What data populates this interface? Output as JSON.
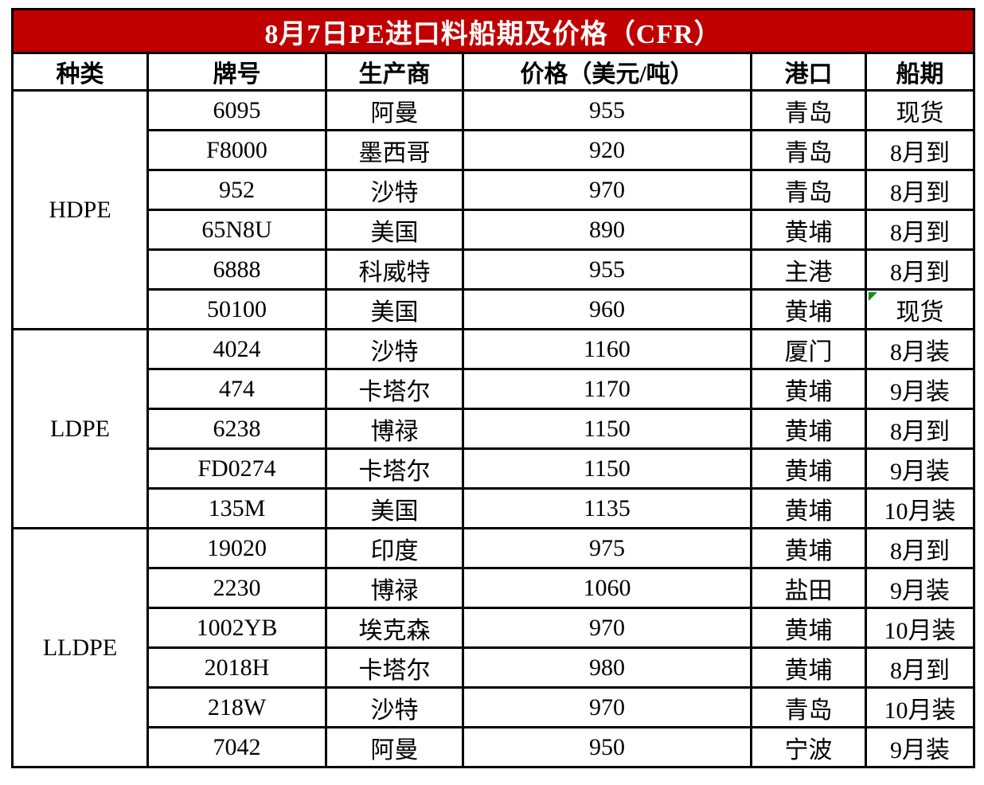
{
  "title": "8月7日PE进口料船期及价格（CFR）",
  "columns": {
    "category": "种类",
    "grade": "牌号",
    "producer": "生产商",
    "price": "价格（美元/吨）",
    "port": "港口",
    "shipment": "船期"
  },
  "groups": [
    {
      "category": "HDPE",
      "rows": [
        {
          "grade": "6095",
          "producer": "阿曼",
          "price": "955",
          "port": "青岛",
          "shipment": "现货"
        },
        {
          "grade": "F8000",
          "producer": "墨西哥",
          "price": "920",
          "port": "青岛",
          "shipment": "8月到"
        },
        {
          "grade": "952",
          "producer": "沙特",
          "price": "970",
          "port": "青岛",
          "shipment": "8月到"
        },
        {
          "grade": "65N8U",
          "producer": "美国",
          "price": "890",
          "port": "黄埔",
          "shipment": "8月到"
        },
        {
          "grade": "6888",
          "producer": "科威特",
          "price": "955",
          "port": "主港",
          "shipment": "8月到"
        },
        {
          "grade": "50100",
          "producer": "美国",
          "price": "960",
          "port": "黄埔",
          "shipment": "现货",
          "has_marker": true
        }
      ]
    },
    {
      "category": "LDPE",
      "rows": [
        {
          "grade": "4024",
          "producer": "沙特",
          "price": "1160",
          "port": "厦门",
          "shipment": "8月装"
        },
        {
          "grade": "474",
          "producer": "卡塔尔",
          "price": "1170",
          "port": "黄埔",
          "shipment": "9月装"
        },
        {
          "grade": "6238",
          "producer": "博禄",
          "price": "1150",
          "port": "黄埔",
          "shipment": "8月到"
        },
        {
          "grade": "FD0274",
          "producer": "卡塔尔",
          "price": "1150",
          "port": "黄埔",
          "shipment": "9月装"
        },
        {
          "grade": "135M",
          "producer": "美国",
          "price": "1135",
          "port": "黄埔",
          "shipment": "10月装"
        }
      ]
    },
    {
      "category": "LLDPE",
      "rows": [
        {
          "grade": "19020",
          "producer": "印度",
          "price": "975",
          "port": "黄埔",
          "shipment": "8月到"
        },
        {
          "grade": "2230",
          "producer": "博禄",
          "price": "1060",
          "port": "盐田",
          "shipment": "9月装"
        },
        {
          "grade": "1002YB",
          "producer": "埃克森",
          "price": "970",
          "port": "黄埔",
          "shipment": "10月装"
        },
        {
          "grade": "2018H",
          "producer": "卡塔尔",
          "price": "980",
          "port": "黄埔",
          "shipment": "8月到"
        },
        {
          "grade": "218W",
          "producer": "沙特",
          "price": "970",
          "port": "青岛",
          "shipment": "10月装"
        },
        {
          "grade": "7042",
          "producer": "阿曼",
          "price": "950",
          "port": "宁波",
          "shipment": "9月装"
        }
      ]
    }
  ],
  "colors": {
    "title_bg": "#c00000",
    "title_text": "#ffffff",
    "border": "#000000",
    "cell_marker_green": "#1c8a1c"
  }
}
